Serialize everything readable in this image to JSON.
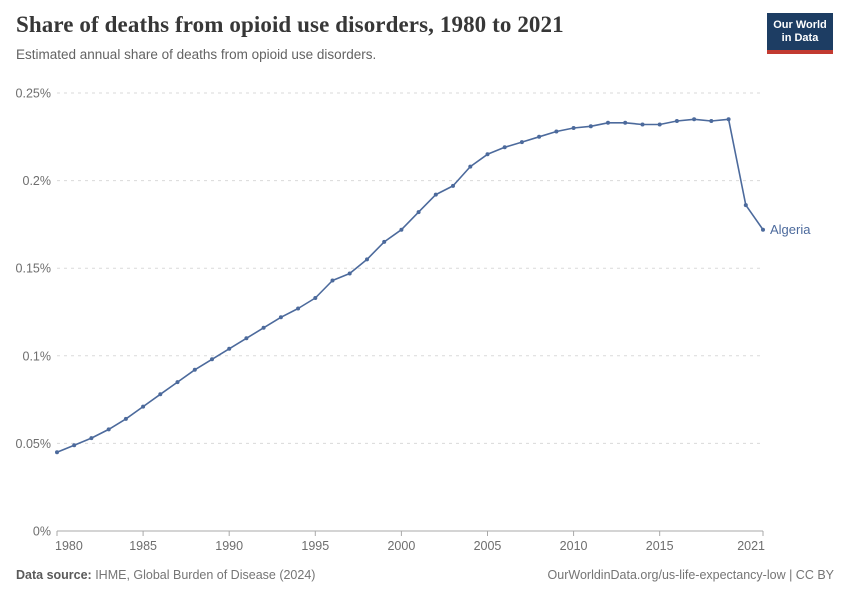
{
  "header": {
    "title": "Share of deaths from opioid use disorders, 1980 to 2021",
    "subtitle": "Estimated annual share of deaths from opioid use disorders."
  },
  "logo": {
    "line1": "Our World",
    "line2": "in Data"
  },
  "chart_data": {
    "type": "line",
    "title": "Share of deaths from opioid use disorders, 1980 to 2021",
    "subtitle": "Estimated annual share of deaths from opioid use disorders.",
    "xlabel": "",
    "ylabel": "",
    "x_range": [
      1980,
      2021
    ],
    "ylim": [
      0,
      0.25
    ],
    "grid": "horizontal-dashed",
    "legend_position": "end-of-line-label",
    "x": [
      1980,
      1981,
      1982,
      1983,
      1984,
      1985,
      1986,
      1987,
      1988,
      1989,
      1990,
      1991,
      1992,
      1993,
      1994,
      1995,
      1996,
      1997,
      1998,
      1999,
      2000,
      2001,
      2002,
      2003,
      2004,
      2005,
      2006,
      2007,
      2008,
      2009,
      2010,
      2011,
      2012,
      2013,
      2014,
      2015,
      2016,
      2017,
      2018,
      2019,
      2020,
      2021
    ],
    "series": [
      {
        "name": "Algeria",
        "color": "#4C6A9C",
        "unit": "%",
        "values": [
          0.045,
          0.049,
          0.053,
          0.058,
          0.064,
          0.071,
          0.078,
          0.085,
          0.092,
          0.098,
          0.104,
          0.11,
          0.116,
          0.122,
          0.127,
          0.133,
          0.143,
          0.147,
          0.155,
          0.165,
          0.172,
          0.182,
          0.192,
          0.197,
          0.208,
          0.215,
          0.219,
          0.222,
          0.225,
          0.228,
          0.23,
          0.231,
          0.233,
          0.233,
          0.232,
          0.232,
          0.234,
          0.235,
          0.234,
          0.235,
          0.186,
          0.172
        ]
      }
    ],
    "x_ticks": [
      1980,
      1985,
      1990,
      1995,
      2000,
      2005,
      2010,
      2015,
      2021
    ],
    "y_ticks": [
      {
        "value": 0,
        "label": "0%"
      },
      {
        "value": 0.05,
        "label": "0.05%"
      },
      {
        "value": 0.1,
        "label": "0.1%"
      },
      {
        "value": 0.15,
        "label": "0.15%"
      },
      {
        "value": 0.2,
        "label": "0.2%"
      },
      {
        "value": 0.25,
        "label": "0.25%"
      }
    ]
  },
  "footer": {
    "source_label": "Data source:",
    "source_text": " IHME, Global Burden of Disease (2024)",
    "credit": "OurWorldinData.org/us-life-expectancy-low | CC BY"
  },
  "colors": {
    "accent": "#4C6A9C",
    "grid": "#dadada",
    "axis": "#a9a9a9",
    "tick_text": "#6e6e6e",
    "logo_bg": "#1d3d63",
    "logo_stripe": "#c23a31"
  }
}
